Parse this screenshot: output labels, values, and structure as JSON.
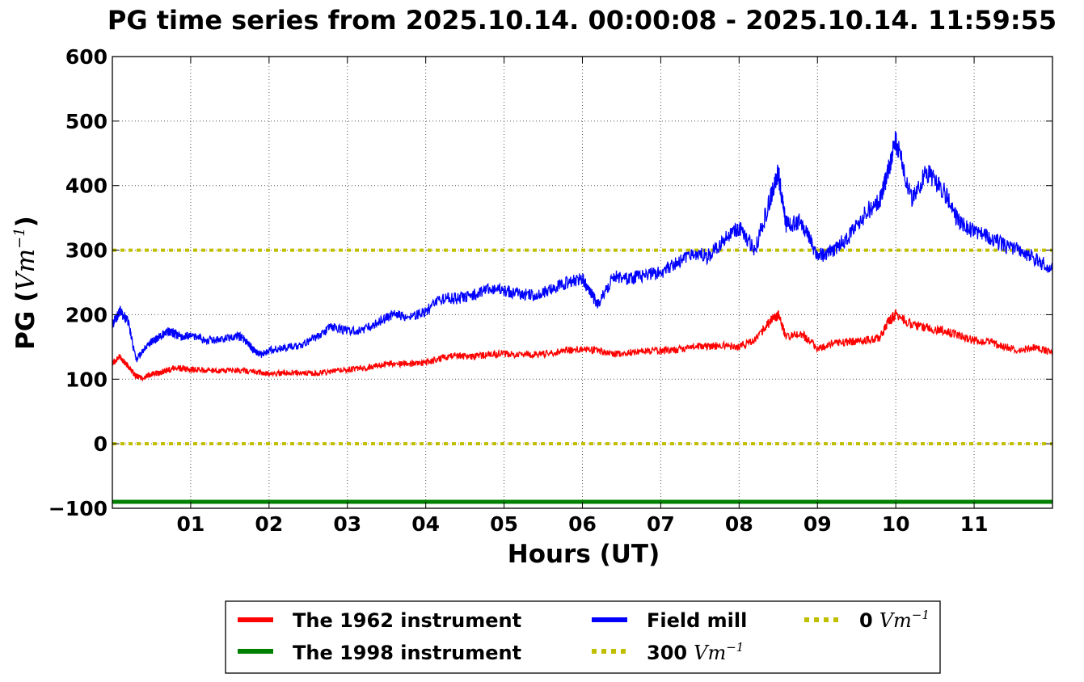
{
  "chart_data": {
    "type": "line",
    "title": "PG time series from 2025.10.14. 00:00:08 - 2025.10.14. 11:59:55",
    "xlabel": "Hours (UT)",
    "ylabel": "PG (",
    "ylabel_unit": "Vm",
    "ylabel_exp": "−1",
    "ylabel_close": ")",
    "xlim": [
      0,
      12
    ],
    "ylim": [
      -100,
      600
    ],
    "grid": true,
    "legend_position": "bottom-center, below axes",
    "xticks": [
      {
        "value": 1,
        "label": "01"
      },
      {
        "value": 2,
        "label": "02"
      },
      {
        "value": 3,
        "label": "03"
      },
      {
        "value": 4,
        "label": "04"
      },
      {
        "value": 5,
        "label": "05"
      },
      {
        "value": 6,
        "label": "06"
      },
      {
        "value": 7,
        "label": "07"
      },
      {
        "value": 8,
        "label": "08"
      },
      {
        "value": 9,
        "label": "09"
      },
      {
        "value": 10,
        "label": "10"
      },
      {
        "value": 11,
        "label": "11"
      }
    ],
    "yticks": [
      {
        "value": -100,
        "label": "−100"
      },
      {
        "value": 0,
        "label": "0"
      },
      {
        "value": 100,
        "label": "100"
      },
      {
        "value": 200,
        "label": "200"
      },
      {
        "value": 300,
        "label": "300"
      },
      {
        "value": 400,
        "label": "400"
      },
      {
        "value": 500,
        "label": "500"
      },
      {
        "value": 600,
        "label": "600"
      }
    ],
    "series": [
      {
        "name": "The 1962 instrument",
        "color": "#ff0000",
        "style": "solid",
        "x": [
          0.0,
          0.1,
          0.2,
          0.3,
          0.4,
          0.5,
          0.6,
          0.7,
          0.8,
          0.9,
          1.0,
          1.2,
          1.4,
          1.6,
          1.8,
          2.0,
          2.2,
          2.4,
          2.6,
          2.8,
          3.0,
          3.2,
          3.4,
          3.6,
          3.8,
          4.0,
          4.2,
          4.4,
          4.6,
          4.8,
          5.0,
          5.2,
          5.4,
          5.6,
          5.8,
          6.0,
          6.2,
          6.4,
          6.6,
          6.8,
          7.0,
          7.2,
          7.4,
          7.6,
          7.8,
          8.0,
          8.2,
          8.4,
          8.5,
          8.6,
          8.8,
          9.0,
          9.2,
          9.4,
          9.6,
          9.8,
          9.9,
          10.0,
          10.2,
          10.4,
          10.6,
          10.8,
          11.0,
          11.2,
          11.4,
          11.6,
          11.8,
          12.0
        ],
        "y": [
          125,
          135,
          120,
          105,
          102,
          108,
          110,
          114,
          118,
          116,
          115,
          114,
          113,
          114,
          112,
          108,
          110,
          110,
          109,
          112,
          115,
          117,
          122,
          124,
          124,
          125,
          133,
          137,
          135,
          138,
          140,
          138,
          138,
          140,
          145,
          146,
          145,
          138,
          142,
          143,
          144,
          146,
          150,
          151,
          152,
          150,
          160,
          190,
          200,
          165,
          170,
          148,
          155,
          158,
          160,
          165,
          188,
          200,
          185,
          180,
          175,
          168,
          160,
          158,
          150,
          145,
          150,
          140
        ]
      },
      {
        "name": "The 1998 instrument",
        "color": "#008000",
        "style": "solid",
        "x": [
          0,
          12
        ],
        "y": [
          -90,
          -90
        ]
      },
      {
        "name": "Field mill",
        "color": "#0000ff",
        "style": "solid",
        "x": [
          0.0,
          0.1,
          0.2,
          0.3,
          0.4,
          0.5,
          0.6,
          0.7,
          0.8,
          0.9,
          1.0,
          1.2,
          1.4,
          1.6,
          1.7,
          1.8,
          1.9,
          2.0,
          2.2,
          2.4,
          2.6,
          2.8,
          3.0,
          3.2,
          3.4,
          3.6,
          3.8,
          4.0,
          4.2,
          4.4,
          4.6,
          4.8,
          5.0,
          5.2,
          5.4,
          5.6,
          5.8,
          6.0,
          6.1,
          6.2,
          6.4,
          6.6,
          6.8,
          7.0,
          7.2,
          7.4,
          7.6,
          7.8,
          8.0,
          8.2,
          8.4,
          8.5,
          8.6,
          8.8,
          9.0,
          9.2,
          9.4,
          9.6,
          9.8,
          9.9,
          10.0,
          10.2,
          10.4,
          10.6,
          10.8,
          11.0,
          11.2,
          11.4,
          11.6,
          11.8,
          12.0
        ],
        "y": [
          185,
          205,
          190,
          130,
          145,
          158,
          165,
          175,
          170,
          165,
          168,
          160,
          162,
          168,
          160,
          145,
          138,
          145,
          148,
          152,
          165,
          182,
          175,
          175,
          190,
          200,
          195,
          205,
          225,
          225,
          230,
          240,
          238,
          232,
          230,
          240,
          250,
          255,
          235,
          215,
          260,
          255,
          262,
          265,
          280,
          295,
          290,
          315,
          335,
          300,
          380,
          420,
          340,
          345,
          290,
          300,
          320,
          355,
          380,
          420,
          470,
          380,
          420,
          395,
          345,
          330,
          320,
          305,
          300,
          285,
          270
        ]
      },
      {
        "name": "300",
        "unit": "Vm",
        "exp": "−1",
        "color": "#bfbf00",
        "style": "dotted",
        "x": [
          0,
          12
        ],
        "y": [
          300,
          300
        ]
      },
      {
        "name": "0",
        "unit": "Vm",
        "exp": "−1",
        "color": "#bfbf00",
        "style": "dotted",
        "x": [
          0,
          12
        ],
        "y": [
          0,
          0
        ]
      }
    ]
  }
}
